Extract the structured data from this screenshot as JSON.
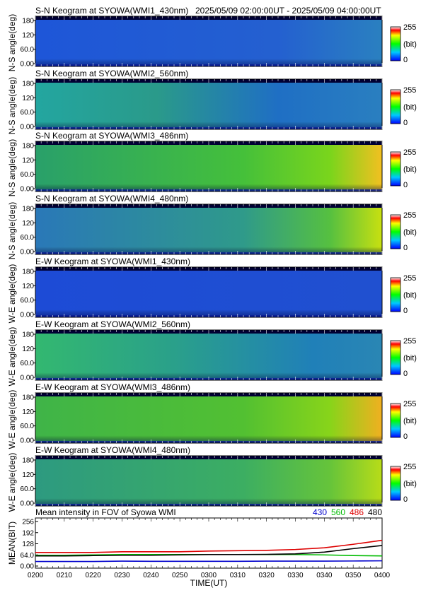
{
  "header": {
    "title": "S-N Keogram at SYOWA(WMI1_430nm)",
    "period": "2025/05/09 02:00:00UT - 2025/05/09 04:00:00UT"
  },
  "colorbar": {
    "max_label": "255",
    "unit_label": "(bit)",
    "min_label": "0"
  },
  "keograms": [
    {
      "title": "S-N Keogram at SYOWA(WMI1_430nm)",
      "ylabel": "N-S angle(deg)",
      "yticks": [
        "180",
        "120",
        "60.0",
        "0.00"
      ]
    },
    {
      "title": "S-N Keogram at SYOWA(WMI2_560nm)",
      "ylabel": "N-S angle(deg)",
      "yticks": [
        "180",
        "120",
        "60.0",
        "0.00"
      ]
    },
    {
      "title": "S-N Keogram at SYOWA(WMI3_486nm)",
      "ylabel": "N-S angle(deg)",
      "yticks": [
        "180",
        "120",
        "60.0",
        "0.00"
      ]
    },
    {
      "title": "S-N Keogram at SYOWA(WMI4_480nm)",
      "ylabel": "N-S angle(deg)",
      "yticks": [
        "180",
        "120",
        "60.0",
        "0.00"
      ]
    },
    {
      "title": "E-W Keogram at SYOWA(WMI1_430nm)",
      "ylabel": "W-E angle(deg)",
      "yticks": [
        "180",
        "120",
        "60.0",
        "0.00"
      ]
    },
    {
      "title": "E-W Keogram at SYOWA(WMI2_560nm)",
      "ylabel": "W-E angle(deg)",
      "yticks": [
        "180",
        "120",
        "60.0",
        "0.00"
      ]
    },
    {
      "title": "E-W Keogram at SYOWA(WMI3_486nm)",
      "ylabel": "W-E angle(deg)",
      "yticks": [
        "180",
        "120",
        "60.0",
        "0.00"
      ]
    },
    {
      "title": "E-W Keogram at SYOWA(WMI4_480nm)",
      "ylabel": "W-E angle(deg)",
      "yticks": [
        "180",
        "120",
        "60.0",
        "0.00"
      ]
    }
  ],
  "chart_data": {
    "type": "line",
    "title": "Mean intensity in FOV of Syowa WMI",
    "xlabel": "TIME(UT)",
    "ylabel": "MEAN(BIT)",
    "x": [
      "0200",
      "0210",
      "0220",
      "0230",
      "0240",
      "0250",
      "0300",
      "0310",
      "0320",
      "0330",
      "0340",
      "0350",
      "0400"
    ],
    "yticks": [
      "256",
      "192",
      "128",
      "64.0",
      "0.00"
    ],
    "ylim": [
      0,
      256
    ],
    "grid": false,
    "legend_position": "top-right",
    "series": [
      {
        "name": "430",
        "color": "#0000cc",
        "values": [
          26,
          26,
          26,
          28,
          27,
          27,
          27,
          27,
          28,
          28,
          28,
          29,
          30
        ]
      },
      {
        "name": "560",
        "color": "#00bb00",
        "values": [
          62,
          62,
          64,
          66,
          66,
          66,
          66,
          66,
          66,
          66,
          64,
          60,
          58
        ]
      },
      {
        "name": "486",
        "color": "#dd0000",
        "values": [
          78,
          78,
          78,
          82,
          82,
          82,
          86,
          88,
          90,
          95,
          105,
          125,
          148
        ]
      },
      {
        "name": "480",
        "color": "#000000",
        "values": [
          58,
          58,
          60,
          62,
          62,
          64,
          66,
          66,
          67,
          70,
          80,
          100,
          118
        ]
      }
    ]
  }
}
